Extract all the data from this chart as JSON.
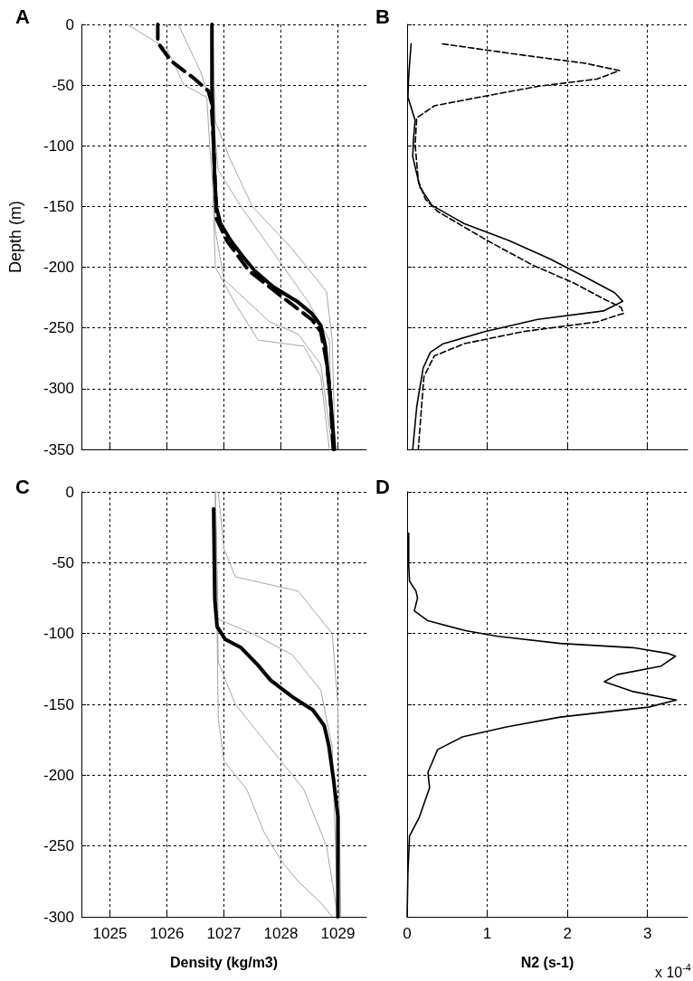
{
  "chart_data": [
    {
      "type": "line",
      "title": "A",
      "ylabel": "Depth (m)",
      "xlim": [
        1024.5,
        1029.5
      ],
      "xticks": [
        1025,
        1026,
        1027,
        1028,
        1029
      ],
      "ylim": [
        -350,
        0
      ],
      "yticks": [
        0,
        -50,
        -100,
        -150,
        -200,
        -250,
        -300,
        -350
      ],
      "grid": true,
      "tick_labels": "y",
      "marker": "none",
      "series": [
        {
          "color": "#a6a6a6",
          "line_style": "solid",
          "x": [
            1025.3,
            1026.0,
            1026.3,
            1026.7,
            1026.75,
            1026.8,
            1026.85,
            1027.2,
            1027.6,
            1028.4,
            1028.7,
            1028.85
          ],
          "values": [
            0,
            -20,
            -50,
            -60,
            -100,
            -130,
            -200,
            -230,
            -260,
            -265,
            -290,
            -350
          ]
        },
        {
          "color": "#a6a6a6",
          "line_style": "solid",
          "x": [
            1026.8,
            1026.85,
            1027.1,
            1027.5,
            1028.2,
            1028.8,
            1028.9,
            1028.95
          ],
          "values": [
            0,
            -80,
            -110,
            -150,
            -185,
            -220,
            -260,
            -350
          ]
        },
        {
          "color": "#a6a6a6",
          "line_style": "solid",
          "x": [
            1026.2,
            1026.6,
            1026.8,
            1026.9,
            1027.3,
            1027.9,
            1028.5,
            1028.85,
            1028.9
          ],
          "values": [
            0,
            -40,
            -70,
            -120,
            -150,
            -190,
            -230,
            -260,
            -350
          ]
        },
        {
          "color": "#a6a6a6",
          "line_style": "solid",
          "x": [
            1026.8,
            1026.8,
            1026.85,
            1027.0,
            1027.8,
            1028.3,
            1028.7,
            1028.9
          ],
          "values": [
            0,
            -100,
            -170,
            -210,
            -245,
            -255,
            -280,
            -350
          ]
        },
        {
          "color": "#000000",
          "line_style": "solid",
          "x": [
            1026.79,
            1026.79,
            1026.82,
            1026.84,
            1026.87,
            1026.94,
            1027.12,
            1027.33,
            1027.54,
            1027.86,
            1028.28,
            1028.54,
            1028.7,
            1028.78,
            1028.83,
            1028.88,
            1028.94
          ],
          "values": [
            0,
            -50,
            -100,
            -129,
            -151,
            -164,
            -178,
            -191,
            -203,
            -216,
            -228,
            -238,
            -248,
            -265,
            -290,
            -315,
            -350
          ]
        },
        {
          "color": "#000000",
          "line_style": "dashed",
          "x": [
            1025.84,
            1025.84,
            1026.07,
            1026.49,
            1026.73,
            1026.78,
            1026.82,
            1026.87,
            1027.05,
            1027.44,
            1028.12,
            1028.54,
            1028.7,
            1028.8,
            1028.86,
            1028.92
          ],
          "values": [
            0,
            -15,
            -30,
            -45,
            -55,
            -64,
            -100,
            -160,
            -178,
            -203,
            -228,
            -243,
            -253,
            -278,
            -302,
            -350
          ]
        }
      ]
    },
    {
      "type": "line",
      "title": "B",
      "xlim": [
        0,
        3.5
      ],
      "xticks": [
        0,
        1,
        2,
        3
      ],
      "ylim": [
        -350,
        0
      ],
      "yticks": [
        0,
        -50,
        -100,
        -150,
        -200,
        -250,
        -300,
        -350
      ],
      "grid": true,
      "tick_labels": false,
      "marker": "none",
      "series": [
        {
          "color": "#000000",
          "line_style": "solid",
          "x": [
            0.05,
            0.02,
            0.01,
            0.1,
            0.08,
            0.07,
            0.16,
            0.31,
            0.71,
            1.27,
            1.78,
            2.22,
            2.59,
            2.69,
            2.45,
            1.63,
            0.97,
            0.45,
            0.29,
            0.2,
            0.12,
            0.07
          ],
          "values": [
            -16,
            -42,
            -60,
            -79,
            -94,
            -109,
            -134,
            -149,
            -164,
            -178,
            -193,
            -208,
            -221,
            -228,
            -236,
            -243,
            -253,
            -263,
            -270,
            -283,
            -315,
            -350
          ]
        },
        {
          "color": "#000000",
          "line_style": "dashed",
          "x": [
            0.44,
            1.41,
            2.22,
            2.65,
            2.37,
            1.63,
            0.9,
            0.34,
            0.12,
            0.1,
            0.14,
            0.23,
            0.38,
            1.0,
            1.56,
            2.08,
            2.45,
            2.67,
            2.7,
            2.37,
            1.45,
            0.71,
            0.34,
            0.21,
            0.18,
            0.14
          ],
          "values": [
            -16,
            -25,
            -32,
            -38,
            -45,
            -51,
            -60,
            -67,
            -77,
            -99,
            -129,
            -144,
            -154,
            -178,
            -198,
            -213,
            -226,
            -233,
            -238,
            -245,
            -253,
            -263,
            -273,
            -290,
            -315,
            -350
          ]
        }
      ]
    },
    {
      "type": "line",
      "title": "C",
      "xlabel": "Density (kg/m3)",
      "xlim": [
        1024.5,
        1029.5
      ],
      "xticks": [
        1025,
        1026,
        1027,
        1028,
        1029
      ],
      "ylim": [
        -300,
        0
      ],
      "yticks": [
        0,
        -50,
        -100,
        -150,
        -200,
        -250,
        -300
      ],
      "grid": true,
      "marker": "none",
      "series": [
        {
          "color": "#a6a6a6",
          "line_style": "solid",
          "x": [
            1026.9,
            1027.0,
            1027.2,
            1028.3,
            1028.6,
            1028.9,
            1029.0,
            1029.05
          ],
          "values": [
            0,
            -40,
            -60,
            -70,
            -85,
            -100,
            -150,
            -300
          ]
        },
        {
          "color": "#a6a6a6",
          "line_style": "solid",
          "x": [
            1026.85,
            1026.9,
            1027.5,
            1028.2,
            1028.7,
            1028.9,
            1029.0
          ],
          "values": [
            0,
            -90,
            -100,
            -115,
            -140,
            -180,
            -300
          ]
        },
        {
          "color": "#a6a6a6",
          "line_style": "solid",
          "x": [
            1026.85,
            1026.9,
            1027.0,
            1027.4,
            1027.7,
            1028.0,
            1028.3,
            1028.7,
            1028.9
          ],
          "values": [
            0,
            -160,
            -190,
            -210,
            -240,
            -260,
            -275,
            -290,
            -300
          ]
        },
        {
          "color": "#a6a6a6",
          "line_style": "solid",
          "x": [
            1026.85,
            1026.9,
            1027.2,
            1027.8,
            1028.4,
            1028.8,
            1029.0
          ],
          "values": [
            0,
            -120,
            -150,
            -180,
            -210,
            -250,
            -300
          ]
        },
        {
          "color": "#000000",
          "line_style": "solid",
          "x": [
            1026.82,
            1026.84,
            1026.88,
            1027.02,
            1027.3,
            1027.59,
            1027.82,
            1028.21,
            1028.56,
            1028.76,
            1028.84,
            1028.92,
            1029.0,
            1029.0
          ],
          "values": [
            -12,
            -76,
            -95,
            -104,
            -110,
            -122,
            -133,
            -145,
            -154,
            -165,
            -179,
            -202,
            -229,
            -300
          ]
        }
      ]
    },
    {
      "type": "line",
      "title": "D",
      "xlabel": "N2 (s-1)",
      "annotations": [
        "x 10$^{-4}$"
      ],
      "xlim": [
        0,
        3.5
      ],
      "xticks": [
        0,
        1,
        2,
        3
      ],
      "ylim": [
        -300,
        0
      ],
      "yticks": [
        0,
        -50,
        -100,
        -150,
        -200,
        -250,
        -300
      ],
      "grid": true,
      "tick_labels": "x",
      "marker": "none",
      "series": [
        {
          "color": "#000000",
          "line_style": "solid",
          "x": [
            0.02,
            0.02,
            0.03,
            0.11,
            0.13,
            0.09,
            0.26,
            0.73,
            1.13,
            1.91,
            2.82,
            3.25,
            3.35,
            3.17,
            2.62,
            2.46,
            2.82,
            3.36,
            3.01,
            1.91,
            1.24,
            0.69,
            0.38,
            0.26,
            0.28,
            0.15,
            0.03,
            0.01,
            0
          ],
          "values": [
            -29,
            -52,
            -63,
            -70,
            -75,
            -84,
            -91,
            -98,
            -102,
            -107,
            -110,
            -114,
            -116,
            -123,
            -129,
            -134,
            -141,
            -147,
            -152,
            -159,
            -166,
            -173,
            -182,
            -198,
            -209,
            -230,
            -243,
            -269,
            -300
          ]
        }
      ]
    }
  ]
}
